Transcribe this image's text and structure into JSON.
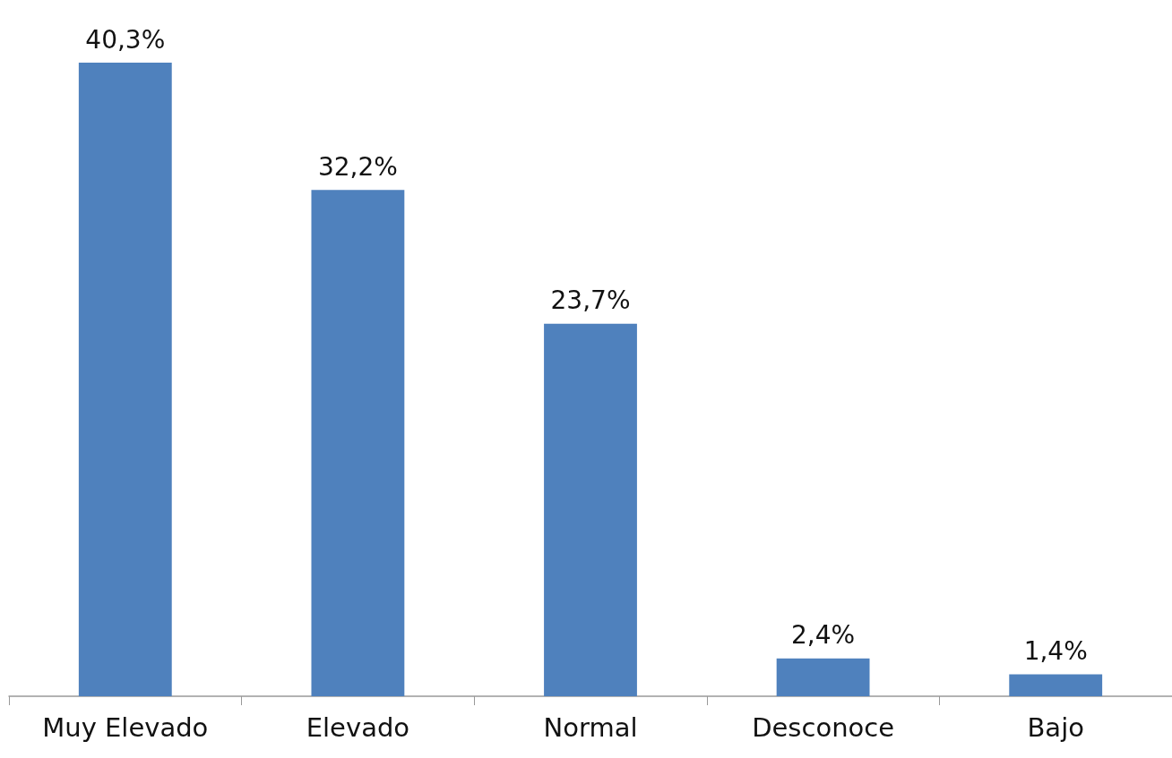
{
  "chart_data": {
    "type": "bar",
    "categories": [
      "Muy Elevado",
      "Elevado",
      "Normal",
      "Desconoce",
      "Bajo"
    ],
    "values": [
      40.3,
      32.2,
      23.7,
      2.4,
      1.4
    ],
    "value_labels": [
      "40,3%",
      "32,2%",
      "23,7%",
      "2,4%",
      "1,4%"
    ],
    "color": "#4f81bd"
  }
}
